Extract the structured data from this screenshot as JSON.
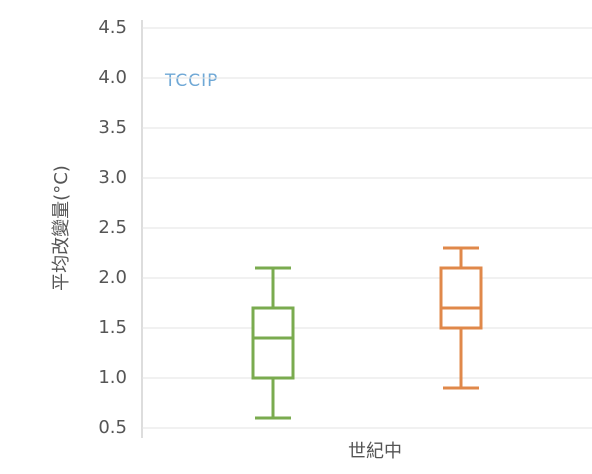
{
  "chart_data": {
    "type": "box",
    "y_label": "平均改變量(°C)",
    "annotation": "TCCIP",
    "categories": [
      "世紀中"
    ],
    "series": [
      {
        "color": "#7aab4f",
        "min": 0.6,
        "q1": 1.0,
        "median": 1.4,
        "q3": 1.7,
        "max": 2.1
      },
      {
        "color": "#e0884a",
        "min": 0.9,
        "q1": 1.5,
        "median": 1.7,
        "q3": 2.1,
        "max": 2.3
      }
    ],
    "ylim": [
      0.5,
      4.5
    ],
    "yticks": [
      0.5,
      {
        "value": 1,
        "label": "1.0"
      },
      1.5,
      {
        "value": 2,
        "label": "2.0"
      },
      2.5,
      {
        "value": 3,
        "label": "3.0"
      },
      3.5,
      {
        "value": 4,
        "label": "4.0"
      },
      4.5
    ],
    "grid": true
  }
}
